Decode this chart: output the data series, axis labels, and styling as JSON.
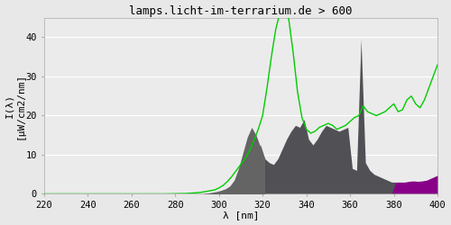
{
  "title": "lamps.licht-im-terrarium.de > 600",
  "xlabel": "λ [nm]",
  "ylabel": "I(λ)\n[μW/cm2/nm]",
  "xlim": [
    220,
    400
  ],
  "ylim": [
    0,
    45
  ],
  "yticks": [
    0,
    10,
    20,
    30,
    40
  ],
  "xticks": [
    220,
    240,
    260,
    280,
    300,
    320,
    340,
    360,
    380,
    400
  ],
  "bg_color": "#e8e8e8",
  "plot_bg_color": "#ebebeb",
  "grid_color": "#ffffff",
  "green_line_color": "#00cc00",
  "spectrum_data": {
    "wavelengths": [
      220,
      225,
      230,
      235,
      240,
      245,
      250,
      255,
      260,
      265,
      270,
      275,
      280,
      285,
      290,
      292,
      294,
      296,
      298,
      300,
      302,
      304,
      306,
      308,
      310,
      312,
      314,
      316,
      318,
      320,
      322,
      324,
      326,
      328,
      330,
      332,
      334,
      336,
      338,
      340,
      342,
      344,
      346,
      348,
      350,
      352,
      354,
      356,
      358,
      360,
      362,
      364,
      366,
      368,
      370,
      372,
      374,
      376,
      378,
      380,
      382,
      384,
      386,
      388,
      390,
      392,
      394,
      396,
      398,
      400
    ],
    "green_values": [
      0.0,
      0.0,
      0.0,
      0.0,
      0.0,
      0.0,
      0.0,
      0.0,
      0.0,
      0.0,
      0.0,
      0.0,
      0.05,
      0.1,
      0.3,
      0.4,
      0.6,
      0.8,
      1.0,
      1.5,
      2.2,
      3.2,
      4.5,
      6.0,
      7.5,
      9.0,
      11.0,
      13.5,
      16.5,
      20.0,
      27.0,
      35.0,
      42.0,
      46.5,
      48.0,
      44.5,
      36.0,
      26.0,
      19.5,
      16.5,
      15.5,
      16.0,
      17.0,
      17.5,
      18.0,
      17.5,
      16.5,
      17.0,
      17.5,
      18.5,
      19.5,
      20.0,
      22.5,
      21.0,
      20.5,
      20.0,
      20.5,
      21.0,
      22.0,
      23.0,
      21.0,
      21.5,
      24.0,
      25.0,
      23.0,
      22.0,
      24.0,
      27.0,
      30.0,
      33.0
    ],
    "uvb_wl": [
      293,
      295,
      297,
      299,
      301,
      303,
      305,
      307,
      309,
      311,
      313,
      315,
      317,
      319,
      321
    ],
    "uvb_val": [
      0.1,
      0.2,
      0.4,
      0.6,
      0.9,
      1.3,
      2.0,
      3.5,
      6.5,
      10.5,
      14.5,
      17.0,
      15.0,
      12.0,
      9.0
    ],
    "uva_wl": [
      295,
      297,
      299,
      301,
      303,
      305,
      307,
      309,
      311,
      313,
      315,
      317,
      319,
      321,
      323,
      325,
      327,
      329,
      331,
      333,
      335,
      337,
      339,
      341,
      343,
      345,
      347,
      349,
      351,
      353,
      355,
      357,
      359,
      361,
      363,
      365,
      367,
      369,
      371,
      373,
      375,
      377,
      379,
      381
    ],
    "uva_val": [
      0.05,
      0.1,
      0.2,
      0.4,
      0.7,
      1.0,
      1.8,
      3.0,
      4.5,
      6.5,
      9.0,
      11.0,
      12.5,
      9.0,
      8.0,
      7.5,
      9.0,
      11.5,
      14.0,
      16.0,
      17.5,
      17.0,
      19.0,
      14.0,
      12.5,
      14.0,
      16.0,
      17.5,
      17.0,
      16.5,
      16.0,
      16.5,
      17.0,
      6.5,
      6.0,
      39.5,
      8.0,
      6.0,
      5.0,
      4.5,
      4.0,
      3.5,
      3.0,
      3.0
    ],
    "vis_wl": [
      379,
      381,
      383,
      385,
      387,
      389,
      391,
      393,
      395,
      397,
      399,
      401
    ],
    "vis_val": [
      0.0,
      3.0,
      3.0,
      3.0,
      3.2,
      3.3,
      3.2,
      3.3,
      3.5,
      4.0,
      4.5,
      5.0
    ]
  },
  "fill_colors": {
    "uvb": "#646464",
    "uva": "#505055",
    "vis": "#880088"
  },
  "font_family": "monospace",
  "title_fontsize": 9,
  "label_fontsize": 8,
  "tick_fontsize": 7.5
}
